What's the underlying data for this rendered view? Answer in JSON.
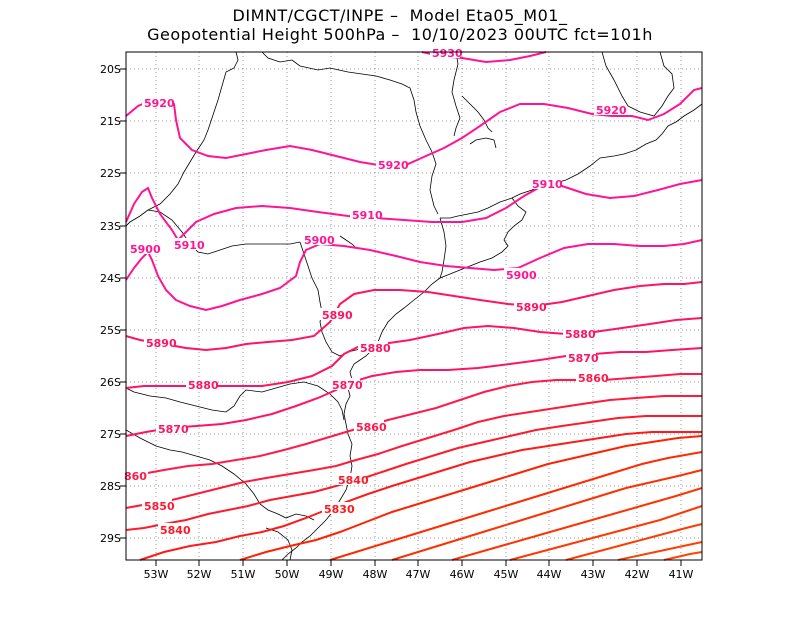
{
  "title_line1": "DIMNT/CGCT/INPE –  Model Eta05_M01_",
  "title_line2": "Geopotential Height 500hPa –  10/10/2023 00UTC fct=101h",
  "lat_ticks": [
    "20S",
    "21S",
    "22S",
    "23S",
    "24S",
    "25S",
    "26S",
    "27S",
    "28S",
    "29S"
  ],
  "lon_ticks": [
    "53W",
    "52W",
    "51W",
    "50W",
    "49W",
    "48W",
    "47W",
    "46W",
    "45W",
    "44W",
    "43W",
    "42W",
    "41W"
  ],
  "contour_labels": {
    "c5930": "5930",
    "c5920a": "5920",
    "c5920b": "5920",
    "c5920c": "5920",
    "c5910a": "5910",
    "c5910b": "5910",
    "c5910c": "5910",
    "c5900a": "5900",
    "c5900b": "5900",
    "c5900c": "5900",
    "c5890a": "5890",
    "c5890b": "5890",
    "c5890c": "5890",
    "c5880a": "5880",
    "c5880b": "5880",
    "c5880c": "5880",
    "c5870a": "5870",
    "c5870b": "5870",
    "c5870c": "5870",
    "c5860a": "5860",
    "c5860b": "5860",
    "c5860c": "860",
    "c5850": "5850",
    "c5840a": "5840",
    "c5840b": "5840",
    "c5830": "5830"
  },
  "colors": {
    "high": "#ff1493",
    "mid": "#ff1463",
    "low": "#ff1a1a",
    "lowest": "#ff3300",
    "grid": "#9a9a9a",
    "coast": "#000000"
  }
}
